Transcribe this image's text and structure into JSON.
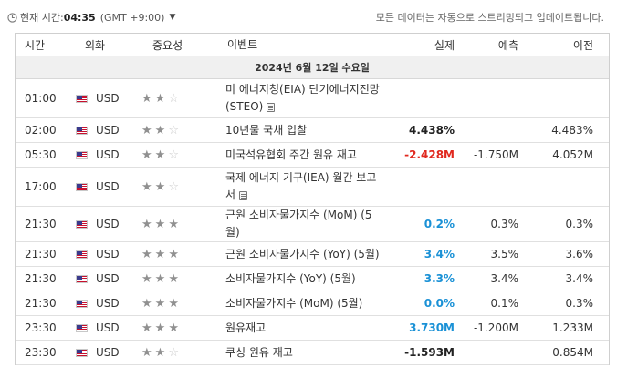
{
  "topbar": {
    "clock_label": "현재 시간:",
    "time": "04:35",
    "timezone": "(GMT +9:00)",
    "notice": "모든 데이터는 자동으로 스트리밍되고 업데이트됩니다."
  },
  "table": {
    "headers": {
      "time": "시간",
      "currency": "외화",
      "importance": "중요성",
      "event": "이벤트",
      "actual": "실제",
      "forecast": "예측",
      "previous": "이전"
    },
    "date": "2024년 6월 12일 수요일",
    "rows": [
      {
        "time": "01:00",
        "currency": "USD",
        "importance": 2,
        "event": "미 에너지청(EIA) 단기에너지전망(STEO)",
        "has_doc": true,
        "actual": "",
        "forecast": "",
        "previous": "",
        "actual_color": "#222222"
      },
      {
        "time": "02:00",
        "currency": "USD",
        "importance": 2,
        "event": "10년물 국채 입찰",
        "has_doc": false,
        "actual": "4.438%",
        "forecast": "",
        "previous": "4.483%",
        "actual_color": "#222222"
      },
      {
        "time": "05:30",
        "currency": "USD",
        "importance": 2,
        "event": "미국석유협회 주간 원유 재고",
        "has_doc": false,
        "actual": "-2.428M",
        "forecast": "-1.750M",
        "previous": "4.052M",
        "actual_color": "#e0281e"
      },
      {
        "time": "17:00",
        "currency": "USD",
        "importance": 2,
        "event": "국제 에너지 기구(IEA) 월간 보고서",
        "has_doc": true,
        "actual": "",
        "forecast": "",
        "previous": "",
        "actual_color": "#222222"
      },
      {
        "time": "21:30",
        "currency": "USD",
        "importance": 3,
        "event": "근원 소비자물가지수 (MoM) (5월)",
        "has_doc": false,
        "actual": "0.2%",
        "forecast": "0.3%",
        "previous": "0.3%",
        "actual_color": "#1a91d6"
      },
      {
        "time": "21:30",
        "currency": "USD",
        "importance": 3,
        "event": "근원 소비자물가지수 (YoY) (5월)",
        "has_doc": false,
        "actual": "3.4%",
        "forecast": "3.5%",
        "previous": "3.6%",
        "actual_color": "#1a91d6"
      },
      {
        "time": "21:30",
        "currency": "USD",
        "importance": 3,
        "event": "소비자물가지수 (YoY) (5월)",
        "has_doc": false,
        "actual": "3.3%",
        "forecast": "3.4%",
        "previous": "3.4%",
        "actual_color": "#1a91d6"
      },
      {
        "time": "21:30",
        "currency": "USD",
        "importance": 3,
        "event": "소비자물가지수 (MoM) (5월)",
        "has_doc": false,
        "actual": "0.0%",
        "forecast": "0.1%",
        "previous": "0.3%",
        "actual_color": "#1a91d6"
      },
      {
        "time": "23:30",
        "currency": "USD",
        "importance": 3,
        "event": "원유재고",
        "has_doc": false,
        "actual": "3.730M",
        "forecast": "-1.200M",
        "previous": "1.233M",
        "actual_color": "#1a91d6"
      },
      {
        "time": "23:30",
        "currency": "USD",
        "importance": 2,
        "event": "쿠싱 원유 재고",
        "has_doc": false,
        "actual": "-1.593M",
        "forecast": "",
        "previous": "0.854M",
        "actual_color": "#222222"
      }
    ]
  }
}
